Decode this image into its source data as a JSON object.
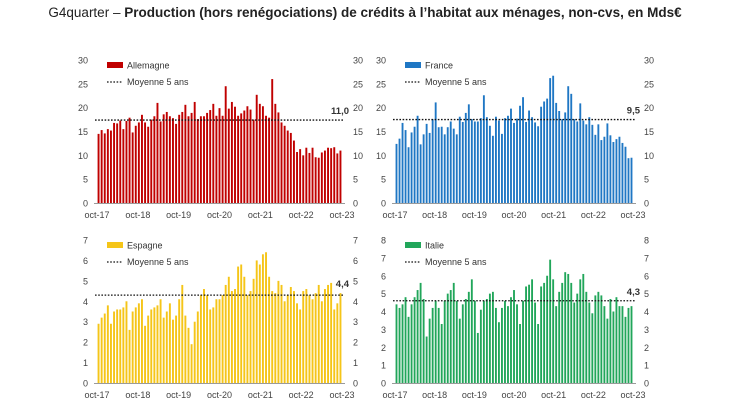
{
  "header": {
    "prefix": "G4quarter",
    "separator": " – ",
    "title": "Production (hors renégociations) de crédits à l’habitat aux ménages, non-cvs, en Mds€"
  },
  "chart_data": [
    {
      "type": "bar",
      "title": "Allemagne",
      "color": "#c00000",
      "legend_series": "Allemagne",
      "legend_avg": "Moyenne 5 ans",
      "average": 17.4,
      "last_label": "11,0",
      "ylim": [
        0,
        30
      ],
      "yticks": [
        "0",
        "5",
        "10",
        "15",
        "20",
        "25",
        "30"
      ],
      "xticks": [
        "oct-17",
        "oct-18",
        "oct-19",
        "oct-20",
        "oct-21",
        "oct-22",
        "oct-23"
      ],
      "values": [
        14.5,
        15.3,
        14.6,
        15.5,
        15.2,
        16.8,
        16.7,
        17.3,
        15.5,
        17.2,
        17.9,
        14.8,
        16.2,
        16.9,
        18.5,
        16.9,
        16.0,
        17.5,
        18.2,
        21.0,
        17.1,
        18.6,
        19.1,
        18.2,
        17.8,
        16.6,
        18.5,
        19.1,
        20.6,
        18.2,
        18.9,
        21.2,
        17.6,
        18.2,
        18.2,
        18.9,
        19.5,
        20.8,
        18.3,
        19.9,
        18.3,
        24.5,
        19.8,
        21.2,
        20.2,
        18.3,
        18.8,
        19.4,
        20.3,
        19.6,
        17.5,
        22.7,
        20.8,
        20.3,
        18.3,
        17.9,
        26.0,
        20.8,
        19.0,
        16.9,
        16.2,
        15.2,
        14.7,
        13.1,
        10.7,
        11.3,
        10.0,
        11.6,
        10.5,
        11.6,
        9.6,
        9.5,
        10.6,
        11.0,
        11.6,
        11.5,
        11.7,
        10.4,
        11.0
      ]
    },
    {
      "type": "bar",
      "title": "France",
      "color": "#1f77c4",
      "legend_series": "France",
      "legend_avg": "Moyenne 5 ans",
      "average": 17.5,
      "last_label": "9,5",
      "ylim": [
        0,
        30
      ],
      "yticks": [
        "0",
        "5",
        "10",
        "15",
        "20",
        "25",
        "30"
      ],
      "xticks": [
        "oct-17",
        "oct-18",
        "oct-19",
        "oct-20",
        "oct-21",
        "oct-22",
        "oct-23"
      ],
      "values": [
        12.4,
        13.5,
        16.8,
        15.3,
        11.7,
        14.8,
        16.0,
        18.3,
        12.3,
        14.4,
        16.6,
        14.7,
        17.6,
        21.1,
        15.9,
        16.0,
        14.4,
        15.9,
        17.1,
        15.6,
        14.4,
        18.1,
        17.0,
        18.9,
        20.7,
        17.6,
        17.1,
        17.1,
        17.8,
        22.6,
        18.0,
        16.2,
        14.1,
        18.1,
        17.3,
        14.5,
        17.8,
        18.3,
        19.8,
        16.8,
        17.7,
        20.4,
        22.2,
        17.0,
        19.4,
        18.0,
        16.9,
        16.1,
        20.2,
        21.3,
        21.9,
        26.2,
        26.7,
        21.0,
        19.3,
        17.6,
        19.0,
        24.5,
        22.9,
        17.6,
        17.1,
        20.9,
        17.3,
        16.5,
        18.0,
        16.4,
        14.3,
        16.5,
        13.2,
        13.9,
        16.7,
        14.2,
        12.8,
        13.4,
        13.9,
        12.6,
        11.8,
        9.4,
        9.5
      ]
    },
    {
      "type": "bar",
      "title": "Espagne",
      "color": "#f5c518",
      "legend_series": "Espagne",
      "legend_avg": "Moyenne 5 ans",
      "average": 4.3,
      "last_label": "4,4",
      "ylim": [
        0,
        7
      ],
      "yticks": [
        "0",
        "1",
        "2",
        "3",
        "4",
        "5",
        "6",
        "7"
      ],
      "xticks": [
        "oct-17",
        "oct-18",
        "oct-19",
        "oct-20",
        "oct-21",
        "oct-22",
        "oct-23"
      ],
      "values": [
        2.9,
        3.2,
        3.4,
        3.8,
        2.9,
        3.5,
        3.6,
        3.6,
        3.7,
        4.0,
        2.6,
        3.5,
        3.7,
        3.9,
        4.1,
        2.8,
        3.3,
        3.6,
        3.7,
        3.8,
        4.1,
        3.2,
        3.5,
        3.9,
        3.1,
        3.3,
        4.1,
        4.8,
        3.3,
        2.7,
        1.9,
        3.0,
        3.5,
        4.3,
        4.6,
        4.3,
        3.6,
        3.7,
        4.1,
        4.1,
        4.3,
        4.8,
        5.2,
        4.5,
        4.6,
        5.7,
        5.8,
        5.2,
        4.3,
        4.5,
        5.1,
        6.0,
        5.8,
        6.3,
        6.4,
        5.2,
        4.5,
        4.4,
        5.0,
        4.8,
        4.0,
        4.3,
        4.7,
        4.5,
        3.9,
        3.6,
        4.5,
        4.6,
        4.3,
        4.1,
        4.4,
        4.8,
        4.0,
        4.6,
        4.8,
        4.9,
        3.6,
        3.9,
        4.4
      ]
    },
    {
      "type": "bar",
      "title": "Italie",
      "color": "#21a65a",
      "legend_series": "Italie",
      "legend_avg": "Moyenne 5 ans",
      "average": 4.6,
      "last_label": "4,3",
      "ylim": [
        0,
        8
      ],
      "yticks": [
        "0",
        "1",
        "2",
        "3",
        "4",
        "5",
        "6",
        "7",
        "8"
      ],
      "xticks": [
        "oct-17",
        "oct-18",
        "oct-19",
        "oct-20",
        "oct-21",
        "oct-22",
        "oct-23"
      ],
      "values": [
        4.4,
        4.2,
        4.4,
        4.8,
        3.7,
        4.4,
        4.8,
        5.2,
        5.6,
        4.7,
        2.6,
        3.6,
        4.2,
        4.6,
        4.2,
        3.3,
        4.6,
        5.0,
        5.2,
        5.6,
        4.6,
        3.6,
        4.4,
        4.7,
        5.1,
        5.8,
        4.6,
        2.8,
        4.1,
        4.6,
        4.7,
        5.0,
        5.1,
        4.2,
        3.4,
        4.2,
        4.6,
        4.3,
        4.8,
        5.2,
        4.4,
        3.3,
        4.6,
        5.4,
        5.5,
        5.8,
        4.5,
        3.3,
        5.4,
        5.6,
        6.0,
        6.9,
        5.8,
        4.3,
        5.1,
        5.6,
        6.2,
        6.1,
        5.6,
        4.5,
        5.0,
        5.8,
        6.1,
        5.1,
        4.5,
        3.9,
        4.9,
        5.1,
        4.9,
        4.3,
        3.6,
        4.7,
        4.0,
        4.8,
        4.3,
        4.3,
        3.7,
        4.2,
        4.3
      ]
    }
  ]
}
